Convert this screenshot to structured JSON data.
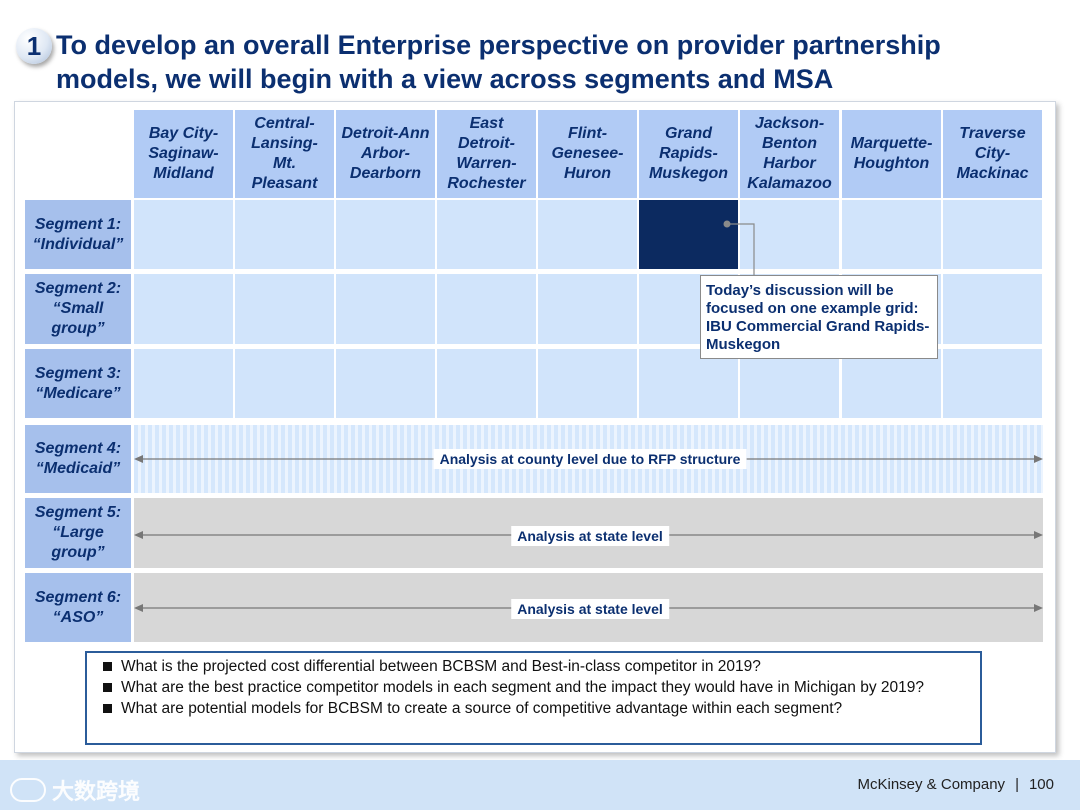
{
  "step_badge": "1",
  "title": "To develop an overall Enterprise perspective on provider partnership models, we will begin with a view across segments and MSA",
  "columns": [
    "Bay City-\nSaginaw-\nMidland",
    "Central-\nLansing-\nMt.\nPleasant",
    "Detroit-Ann\nArbor-\nDearborn",
    "East\nDetroit-\nWarren-\nRochester",
    "Flint-\nGenesee-\nHuron",
    "Grand\nRapids-\nMuskegon",
    "Jackson-\nBenton\nHarbor\nKalamazoo",
    "Marquette-\nHoughton",
    "Traverse\nCity-\nMackinac"
  ],
  "segments": [
    "Segment 1:\n“Individual”",
    "Segment 2:\n“Small\ngroup”",
    "Segment 3:\n“Medicare”",
    "Segment 4:\n“Medicaid”",
    "Segment 5:\n“Large\ngroup”",
    "Segment 6:\n“ASO”"
  ],
  "bands": {
    "medicaid": "Analysis at county level due to RFP structure",
    "large_group": "Analysis at state level",
    "aso": "Analysis at state level"
  },
  "callout": "Today’s discussion  will be focused on one example grid: IBU Commercial Grand Rapids-Muskegon",
  "questions": [
    "What is the projected cost differential between BCBSM and Best-in-class competitor in 2019?",
    "What are the best practice competitor models in each segment and the impact they would have in Michigan by 2019?",
    "What are potential models for BCBSM to create  a source of competitive advantage within each segment?"
  ],
  "footer": {
    "watermark": "大数跨境",
    "company": "McKinsey & Company",
    "page_number": "100"
  },
  "colors": {
    "title": "#0b2f70",
    "header_fill": "#b1cbf5",
    "cell_fill": "#d1e4fb",
    "highlight": "#0c2a60",
    "state_level_fill": "#d7d7d7"
  }
}
